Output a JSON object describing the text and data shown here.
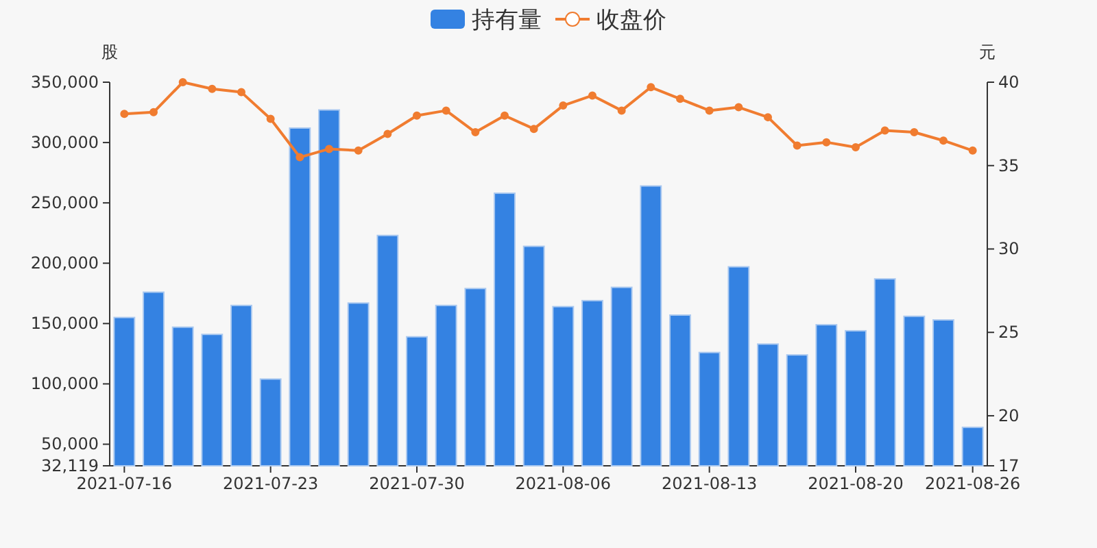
{
  "chart_data": {
    "type": "bar",
    "ylabel": "股",
    "y2label": "元",
    "legend": "top",
    "grid": false,
    "categories": [
      "2021-07-16",
      null,
      null,
      null,
      null,
      "2021-07-23",
      null,
      null,
      null,
      null,
      "2021-07-30",
      null,
      null,
      null,
      null,
      "2021-08-06",
      null,
      null,
      null,
      null,
      "2021-08-13",
      null,
      null,
      null,
      null,
      "2021-08-20",
      null,
      null,
      null,
      "2021-08-26"
    ],
    "ylim": [
      32119,
      350000
    ],
    "yticks": [
      {
        "value": 32119,
        "label": "32,119"
      },
      {
        "value": 50000,
        "label": "50,000"
      },
      {
        "value": 100000,
        "label": "100,000"
      },
      {
        "value": 150000,
        "label": "150,000"
      },
      {
        "value": 200000,
        "label": "200,000"
      },
      {
        "value": 250000,
        "label": "250,000"
      },
      {
        "value": 300000,
        "label": "300,000"
      },
      {
        "value": 350000,
        "label": "350,000"
      }
    ],
    "y2lim": [
      17,
      40
    ],
    "y2ticks": [
      17,
      20,
      25,
      30,
      35,
      40
    ],
    "series": [
      {
        "name": "持有量",
        "color": "#3482e2",
        "values": [
          155000,
          176000,
          147000,
          141000,
          165000,
          104000,
          312000,
          327000,
          167000,
          223000,
          139000,
          165000,
          179000,
          258000,
          214000,
          164000,
          169000,
          180000,
          264000,
          157000,
          126000,
          197000,
          133000,
          124000,
          149000,
          144000,
          187000,
          156000,
          153000,
          64000
        ]
      },
      {
        "name": "收盘价",
        "type": "line",
        "axis": "y2",
        "color": "#f07c30",
        "marker": "circle",
        "values": [
          38.1,
          38.2,
          40.0,
          39.6,
          39.4,
          37.8,
          35.5,
          36.0,
          35.9,
          36.9,
          38.0,
          38.3,
          37.0,
          38.0,
          37.2,
          38.6,
          39.2,
          38.3,
          39.7,
          39.0,
          38.3,
          38.5,
          37.9,
          36.2,
          36.4,
          36.1,
          37.1,
          37.0,
          36.5,
          35.9
        ]
      }
    ]
  }
}
